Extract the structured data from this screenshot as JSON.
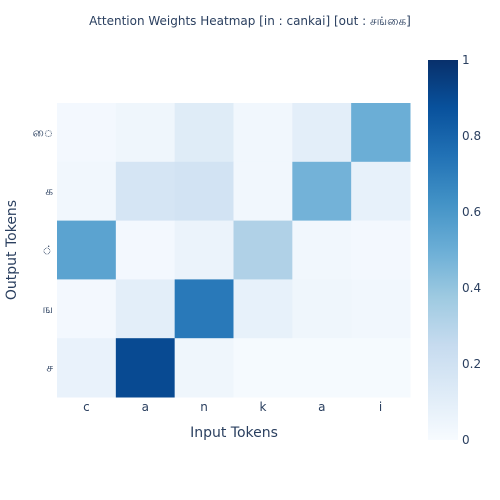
{
  "chart_data": {
    "type": "heatmap",
    "title": "Attention Weights Heatmap [in : cankai] [out : சங்கை]",
    "xlabel": "Input Tokens",
    "ylabel": "Output Tokens",
    "x_categories": [
      "c",
      "a",
      "n",
      "k",
      "a",
      "i"
    ],
    "y_categories": [
      "ை",
      "க",
      "்",
      "ங",
      "ச"
    ],
    "values": [
      [
        0.02,
        0.04,
        0.12,
        0.03,
        0.1,
        0.5
      ],
      [
        0.03,
        0.17,
        0.19,
        0.03,
        0.48,
        0.08
      ],
      [
        0.55,
        0.02,
        0.06,
        0.32,
        0.03,
        0.02
      ],
      [
        0.02,
        0.1,
        0.72,
        0.08,
        0.04,
        0.03
      ],
      [
        0.07,
        0.9,
        0.04,
        0.01,
        0.01,
        0.01
      ]
    ],
    "zlim": [
      0,
      1
    ],
    "colorscale": "Blues",
    "colorbar_ticks": [
      "0",
      "0.2",
      "0.4",
      "0.6",
      "0.8",
      "1"
    ]
  }
}
